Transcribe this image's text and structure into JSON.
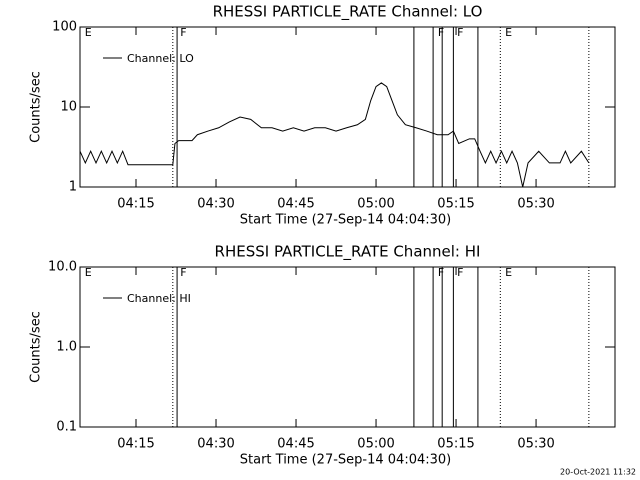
{
  "chart_data": [
    {
      "type": "line",
      "title": "RHESSI PARTICLE_RATE Channel: LO",
      "xlabel": "Start Time (27-Sep-14 04:04:30)",
      "ylabel": "Counts/sec",
      "log_y": true,
      "xlim": [
        0,
        100.3
      ],
      "ylim": [
        1,
        100
      ],
      "yticks": [
        1,
        10,
        100
      ],
      "xticks": [
        {
          "value": 10.5,
          "label": "04:15"
        },
        {
          "value": 25.5,
          "label": "04:30"
        },
        {
          "value": 40.5,
          "label": "04:45"
        },
        {
          "value": 55.5,
          "label": "05:00"
        },
        {
          "value": 70.5,
          "label": "05:15"
        },
        {
          "value": 85.5,
          "label": "05:30"
        }
      ],
      "x": [
        0,
        1,
        2,
        3,
        4,
        5,
        6,
        7,
        8,
        9,
        17.4,
        17.8,
        18.5,
        21,
        22,
        24,
        26,
        28,
        30,
        32,
        34,
        36,
        38,
        40,
        42,
        44,
        46,
        48,
        50,
        52,
        53.5,
        54.5,
        55.5,
        56.5,
        57.5,
        58.5,
        59.5,
        61,
        63,
        65,
        67,
        69,
        70,
        71,
        73,
        74,
        75,
        76,
        77,
        78,
        79,
        80,
        81,
        82,
        83,
        84,
        86,
        88,
        90,
        91,
        92,
        94,
        95.4
      ],
      "series": [
        {
          "name": "Channel: LO",
          "color": "#000000",
          "values": [
            2.8,
            2,
            2.8,
            2,
            2.8,
            2,
            2.8,
            2,
            2.8,
            1.9,
            1.9,
            3.5,
            3.8,
            3.8,
            4.5,
            5,
            5.5,
            6.5,
            7.5,
            7,
            5.5,
            5.5,
            5,
            5.5,
            5,
            5.5,
            5.5,
            5,
            5.5,
            6,
            7,
            12,
            18,
            20,
            18,
            12,
            8,
            6,
            5.5,
            5,
            4.5,
            4.5,
            5,
            3.5,
            4,
            4,
            2.8,
            2,
            2.8,
            2,
            2.8,
            2,
            2.8,
            2,
            1,
            2,
            2.8,
            2,
            2,
            2.8,
            2,
            2.8,
            2
          ]
        }
      ],
      "markers": [
        {
          "x": 17.4,
          "style": "dotted"
        },
        {
          "x": 18.2,
          "style": "solid"
        },
        {
          "x": 62.6,
          "style": "solid"
        },
        {
          "x": 66.2,
          "style": "solid"
        },
        {
          "x": 67.9,
          "style": "solid"
        },
        {
          "x": 70,
          "style": "solid"
        },
        {
          "x": 74.6,
          "style": "solid"
        },
        {
          "x": 78.8,
          "style": "dotted"
        },
        {
          "x": 95.4,
          "style": "dotted"
        }
      ],
      "flags": [
        {
          "x": 0.9,
          "text": "E"
        },
        {
          "x": 18.8,
          "text": "F"
        },
        {
          "x": 67.1,
          "text": "F"
        },
        {
          "x": 70.7,
          "text": "F"
        },
        {
          "x": 79.7,
          "text": "E"
        }
      ]
    },
    {
      "type": "line",
      "title": "RHESSI PARTICLE_RATE Channel: HI",
      "xlabel": "Start Time (27-Sep-14 04:04:30)",
      "ylabel": "Counts/sec",
      "log_y": true,
      "xlim": [
        0,
        100.3
      ],
      "ylim": [
        0.1,
        10
      ],
      "yticks": [
        0.1,
        {
          "value": 1,
          "label": "1.0"
        },
        {
          "value": 10,
          "label": "10.0"
        }
      ],
      "xticks": [
        {
          "value": 10.5,
          "label": "04:15"
        },
        {
          "value": 25.5,
          "label": "04:30"
        },
        {
          "value": 40.5,
          "label": "04:45"
        },
        {
          "value": 55.5,
          "label": "05:00"
        },
        {
          "value": 70.5,
          "label": "05:15"
        },
        {
          "value": 85.5,
          "label": "05:30"
        }
      ],
      "x": [],
      "series": [
        {
          "name": "Channel: HI",
          "color": "#000000",
          "values": []
        }
      ],
      "markers": [
        {
          "x": 17.4,
          "style": "dotted"
        },
        {
          "x": 18.2,
          "style": "solid"
        },
        {
          "x": 62.6,
          "style": "solid"
        },
        {
          "x": 66.2,
          "style": "solid"
        },
        {
          "x": 67.9,
          "style": "solid"
        },
        {
          "x": 70,
          "style": "solid"
        },
        {
          "x": 74.6,
          "style": "solid"
        },
        {
          "x": 78.8,
          "style": "dotted"
        },
        {
          "x": 95.4,
          "style": "dotted"
        }
      ],
      "flags": [
        {
          "x": 0.9,
          "text": "E"
        },
        {
          "x": 18.8,
          "text": "F"
        },
        {
          "x": 67.1,
          "text": "F"
        },
        {
          "x": 70.7,
          "text": "F"
        },
        {
          "x": 79.7,
          "text": "E"
        }
      ]
    }
  ],
  "footer": "20-Oct-2021 11:32"
}
